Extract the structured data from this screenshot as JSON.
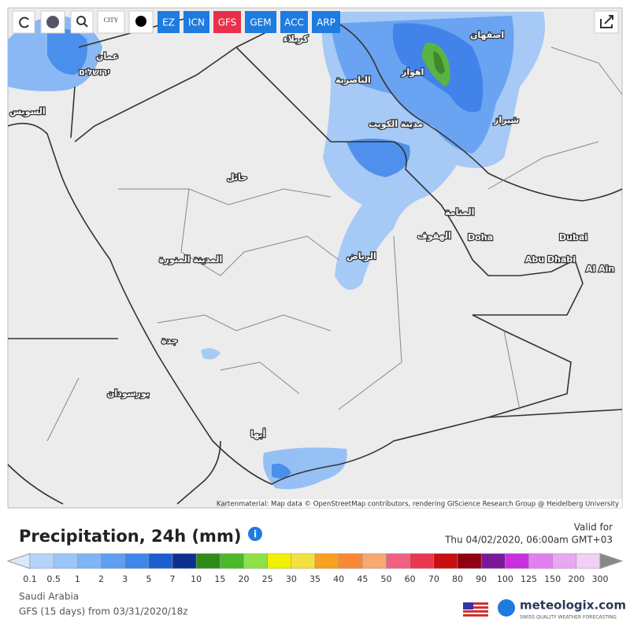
{
  "toolbar": {
    "city": "CITY",
    "models": [
      {
        "label": "EZ",
        "color": "#1e7be0"
      },
      {
        "label": "ICN",
        "color": "#1e7be0"
      },
      {
        "label": "GFS",
        "color": "#e8304a"
      },
      {
        "label": "GEM",
        "color": "#1e7be0"
      },
      {
        "label": "ACC",
        "color": "#1e7be0"
      },
      {
        "label": "ARP",
        "color": "#1e7be0"
      }
    ]
  },
  "map": {
    "cities": [
      "عمان",
      "ירושלים",
      "السويس",
      "كربلاء",
      "الناصرية",
      "اهواز",
      "اصفهان",
      "شيراز",
      "مدينة الكويت",
      "حائل",
      "المنامة",
      "الهفوف",
      "Doha",
      "Dubai",
      "Abu Dhabi",
      "Al Ain",
      "الرياض",
      "المدينة المنورة",
      "جدة",
      "بورسودان",
      "أبها"
    ],
    "attribution": "Kartenmaterial: Map data © OpenStreetMap contributors, rendering GIScience Research Group @ Heidelberg University"
  },
  "legend": {
    "title": "Precipitation, 24h (mm)",
    "valid_label": "Valid for",
    "valid_time": "Thu 04/02/2020, 06:00am GMT+03",
    "ticks": [
      0.1,
      0.5,
      1,
      2,
      3,
      5,
      7,
      10,
      15,
      20,
      25,
      30,
      35,
      40,
      45,
      50,
      60,
      70,
      80,
      90,
      100,
      125,
      150,
      200,
      300
    ],
    "colors": [
      "#dce8fa",
      "#b4d3f8",
      "#9cc6f6",
      "#7fb5f4",
      "#5e9ff1",
      "#3f87ec",
      "#1c5fd2",
      "#0f2f8f",
      "#2f8a1c",
      "#4db82a",
      "#8ee04a",
      "#f0f000",
      "#f4e040",
      "#f8a020",
      "#f88838",
      "#f8a870",
      "#f06080",
      "#e83850",
      "#c81010",
      "#900010",
      "#7a1a9a",
      "#c830e0",
      "#e080f0",
      "#e8a8f0",
      "#f0d0f4",
      "#c8c8c8",
      "#888888"
    ]
  },
  "footer": {
    "region": "Saudi Arabia",
    "run": "GFS (15 days) from 03/31/2020/18z",
    "brand": "meteologix.com",
    "tagline": "SWISS QUALITY WEATHER FORECASTING"
  }
}
